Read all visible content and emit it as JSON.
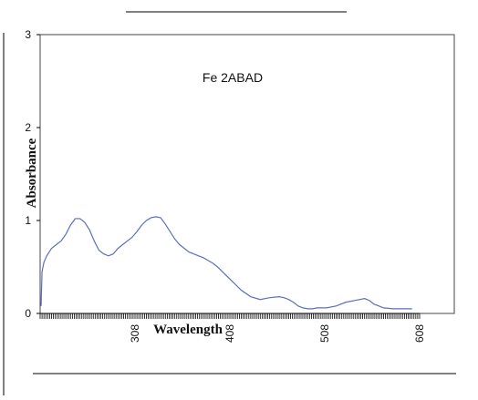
{
  "chart_data": {
    "type": "line",
    "annotation": "Fe 2ABAD",
    "xlabel": "Wavelength",
    "ylabel": "Absorbance",
    "xlim": [
      208,
      608
    ],
    "ylim": [
      0,
      3
    ],
    "x_ticks": [
      308,
      408,
      508,
      608
    ],
    "y_ticks": [
      0,
      1,
      2,
      3
    ],
    "grid": false,
    "legend": "none",
    "series": [
      {
        "color": "#5a6fc0",
        "x": [
          209,
          210,
          212,
          215,
          220,
          225,
          230,
          235,
          240,
          245,
          250,
          255,
          260,
          265,
          270,
          275,
          280,
          285,
          290,
          295,
          300,
          305,
          310,
          315,
          320,
          325,
          330,
          335,
          340,
          345,
          350,
          355,
          360,
          365,
          370,
          375,
          380,
          385,
          390,
          395,
          400,
          410,
          420,
          430,
          440,
          450,
          460,
          465,
          470,
          475,
          480,
          485,
          490,
          495,
          500,
          510,
          520,
          530,
          540,
          545,
          550,
          555,
          560,
          565,
          570,
          580,
          590,
          600
        ],
        "y": [
          0.08,
          0.45,
          0.55,
          0.62,
          0.7,
          0.74,
          0.78,
          0.85,
          0.95,
          1.02,
          1.02,
          0.98,
          0.9,
          0.78,
          0.68,
          0.64,
          0.62,
          0.64,
          0.7,
          0.74,
          0.78,
          0.82,
          0.88,
          0.95,
          1.0,
          1.03,
          1.04,
          1.03,
          0.96,
          0.88,
          0.8,
          0.74,
          0.7,
          0.66,
          0.64,
          0.62,
          0.6,
          0.57,
          0.54,
          0.5,
          0.45,
          0.35,
          0.25,
          0.18,
          0.15,
          0.17,
          0.18,
          0.17,
          0.15,
          0.12,
          0.08,
          0.06,
          0.05,
          0.05,
          0.06,
          0.06,
          0.08,
          0.12,
          0.14,
          0.15,
          0.16,
          0.14,
          0.1,
          0.08,
          0.06,
          0.05,
          0.05,
          0.05
        ]
      }
    ]
  }
}
